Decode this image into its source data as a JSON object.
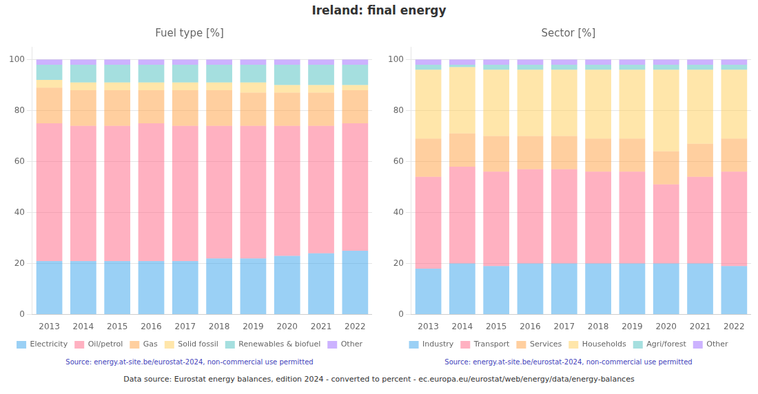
{
  "title": "Ireland: final energy",
  "annotations": [
    "Data source: Eurostat energy balances, edition 2024 - converted to percent - ec.europa.eu/eurostat/web/energy/data/energy-balances"
  ],
  "chart_data": [
    {
      "type": "bar",
      "stacked": true,
      "title": "Fuel type [%]",
      "categories": [
        "2013",
        "2014",
        "2015",
        "2016",
        "2017",
        "2018",
        "2019",
        "2020",
        "2021",
        "2022"
      ],
      "series": [
        {
          "name": "Electricity",
          "values": [
            21,
            21,
            21,
            21,
            21,
            22,
            22,
            23,
            24,
            25
          ]
        },
        {
          "name": "Oil/petrol",
          "values": [
            54,
            53,
            53,
            54,
            53,
            52,
            52,
            51,
            50,
            50
          ]
        },
        {
          "name": "Gas",
          "values": [
            14,
            14,
            14,
            13,
            14,
            14,
            13,
            13,
            13,
            13
          ]
        },
        {
          "name": "Solid fossil",
          "values": [
            3,
            3,
            3,
            3,
            3,
            3,
            4,
            3,
            3,
            2
          ]
        },
        {
          "name": "Renewables & biofuel",
          "values": [
            6,
            7,
            7,
            7,
            7,
            7,
            7,
            8,
            8,
            8
          ]
        },
        {
          "name": "Other",
          "values": [
            2,
            2,
            2,
            2,
            2,
            2,
            2,
            2,
            2,
            2
          ]
        }
      ],
      "ylim": [
        0,
        105
      ],
      "yticks": [
        0,
        20,
        40,
        60,
        80,
        100
      ],
      "grid": true,
      "legend": "bottom",
      "annotations": [
        "Source: energy.at-site.be/eurostat-2024, non-commercial use permitted"
      ]
    },
    {
      "type": "bar",
      "stacked": true,
      "title": "Sector [%]",
      "categories": [
        "2013",
        "2014",
        "2015",
        "2016",
        "2017",
        "2018",
        "2019",
        "2020",
        "2021",
        "2022"
      ],
      "series": [
        {
          "name": "Industry",
          "values": [
            18,
            20,
            19,
            20,
            20,
            20,
            20,
            20,
            20,
            19
          ]
        },
        {
          "name": "Transport",
          "values": [
            36,
            38,
            37,
            37,
            37,
            36,
            36,
            31,
            34,
            37
          ]
        },
        {
          "name": "Services",
          "values": [
            15,
            13,
            14,
            13,
            13,
            13,
            13,
            13,
            13,
            13
          ]
        },
        {
          "name": "Households",
          "values": [
            27,
            26,
            26,
            26,
            26,
            27,
            27,
            32,
            29,
            27
          ]
        },
        {
          "name": "Agri/forest",
          "values": [
            2,
            1,
            2,
            2,
            2,
            2,
            2,
            2,
            2,
            2
          ]
        },
        {
          "name": "Other",
          "values": [
            2,
            2,
            2,
            2,
            2,
            2,
            2,
            2,
            2,
            2
          ]
        }
      ],
      "ylim": [
        0,
        105
      ],
      "yticks": [
        0,
        20,
        40,
        60,
        80,
        100
      ],
      "grid": true,
      "legend": "bottom",
      "annotations": [
        "Source: energy.at-site.be/eurostat-2024, non-commercial use permitted"
      ]
    }
  ]
}
